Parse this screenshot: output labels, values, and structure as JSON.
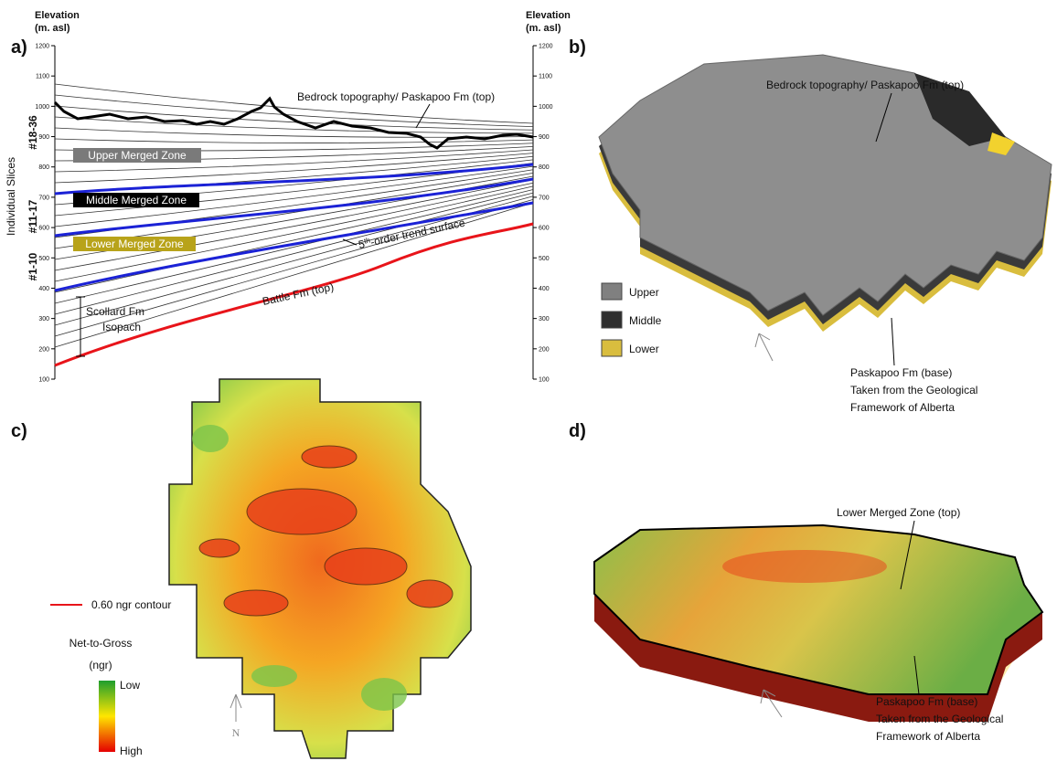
{
  "panel_a": {
    "label": "a)",
    "left_axis_title": [
      "Elevation",
      "(m. asl)"
    ],
    "right_axis_title": [
      "Elevation",
      "(m. asl)"
    ],
    "ticks": [
      100,
      200,
      300,
      400,
      500,
      600,
      700,
      800,
      900,
      1000,
      1100,
      1200
    ],
    "side_title": "Individual Slices",
    "slice_groups": [
      "#18-36",
      "#11-17",
      "#1-10"
    ],
    "zones": [
      "Upper Merged Zone",
      "Middle Merged Zone",
      "Lower Merged Zone"
    ],
    "bedrock_note": "Bedrock topography/ Paskapoo Fm (top)",
    "trend_note": [
      "5",
      "th",
      "-order trend surface"
    ],
    "battle_note": "Battle Fm (top)",
    "scollard_note": [
      "Scollard Fm",
      "Isopach"
    ]
  },
  "panel_b": {
    "label": "b)",
    "bedrock_note": "Bedrock topography/ Paskapoo Fm (top)",
    "legend": [
      "Upper",
      "Middle",
      "Lower"
    ],
    "base_note": [
      "Paskapoo Fm (base)",
      "Taken from the Geological",
      "Framework of Alberta"
    ]
  },
  "panel_c": {
    "label": "c)",
    "contour_legend": "0.60 ngr contour",
    "title": [
      "Net-to-Gross",
      "(ngr)"
    ],
    "scale": [
      "Low",
      "High"
    ],
    "north": "N"
  },
  "panel_d": {
    "label": "d)",
    "zone_note": "Lower Merged Zone (top)",
    "base_note": [
      "Paskapoo Fm (base)",
      "Taken from the Geological",
      "Framework of Alberta"
    ]
  }
}
